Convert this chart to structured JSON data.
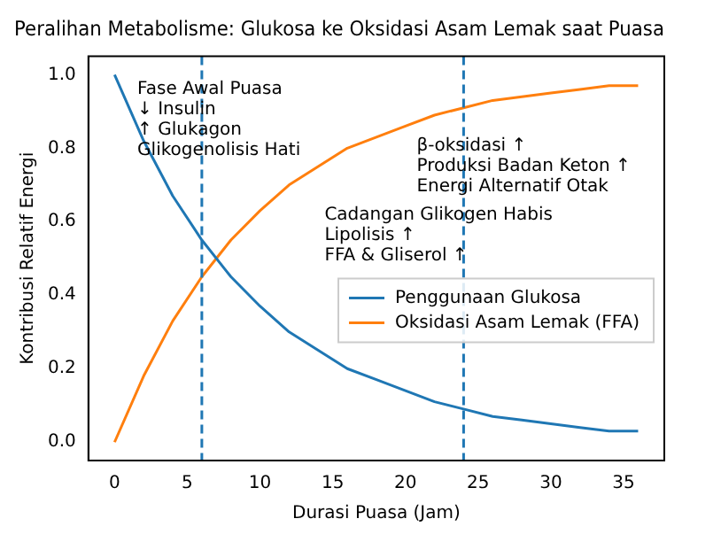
{
  "chart_data": {
    "type": "line",
    "title": "Peralihan Metabolisme: Glukosa ke Oksidasi Asam Lemak saat Puasa",
    "xlabel": "Durasi Puasa (Jam)",
    "ylabel": "Kontribusi Relatif Energi",
    "x": [
      0,
      2,
      4,
      6,
      8,
      10,
      12,
      14,
      16,
      18,
      20,
      22,
      24,
      26,
      28,
      30,
      32,
      34,
      36
    ],
    "series": [
      {
        "name": "Penggunaan Glukosa",
        "color": "#1f77b4",
        "values": [
          1.0,
          0.82,
          0.67,
          0.55,
          0.45,
          0.37,
          0.3,
          0.25,
          0.2,
          0.17,
          0.14,
          0.11,
          0.09,
          0.07,
          0.06,
          0.05,
          0.04,
          0.03,
          0.03
        ]
      },
      {
        "name": "Oksidasi Asam Lemak (FFA)",
        "color": "#ff7f0e",
        "values": [
          0,
          0.18,
          0.33,
          0.45,
          0.55,
          0.63,
          0.7,
          0.75,
          0.8,
          0.83,
          0.86,
          0.89,
          0.91,
          0.93,
          0.94,
          0.95,
          0.96,
          0.97,
          0.97
        ]
      }
    ],
    "xlim": [
      -1.8,
      37.8
    ],
    "xticks": [
      0,
      5,
      10,
      15,
      20,
      25,
      30,
      35
    ],
    "ylim": [
      -0.05,
      1.05
    ],
    "yticks": [
      {
        "value": 0,
        "label": "0.0"
      },
      {
        "value": 0.2,
        "label": "0.2"
      },
      {
        "value": 0.4,
        "label": "0.4"
      },
      {
        "value": 0.6,
        "label": "0.6"
      },
      {
        "value": 0.8,
        "label": "0.8"
      },
      {
        "value": 1,
        "label": "1.0"
      }
    ],
    "ref_lines": [
      {
        "axis": "x",
        "value": 6,
        "color": "#1f77b4",
        "line_style": "dashed"
      },
      {
        "axis": "x",
        "value": 24,
        "color": "#1f77b4",
        "line_style": "dashed"
      }
    ],
    "annotations": [
      "Fase Awal Puasa\n↓ Insulin\n↑ Glukagon\nGlikogenolisis Hati",
      "β-oksidasi ↑\nProduksi Badan Keton ↑\nEnergi Alternatif Otak",
      "Cadangan Glikogen Habis\nLipolisis ↑\nFFA & Gliserol ↑"
    ],
    "legend": "right",
    "grid": false,
    "marker": "none",
    "line_style": "solid"
  }
}
